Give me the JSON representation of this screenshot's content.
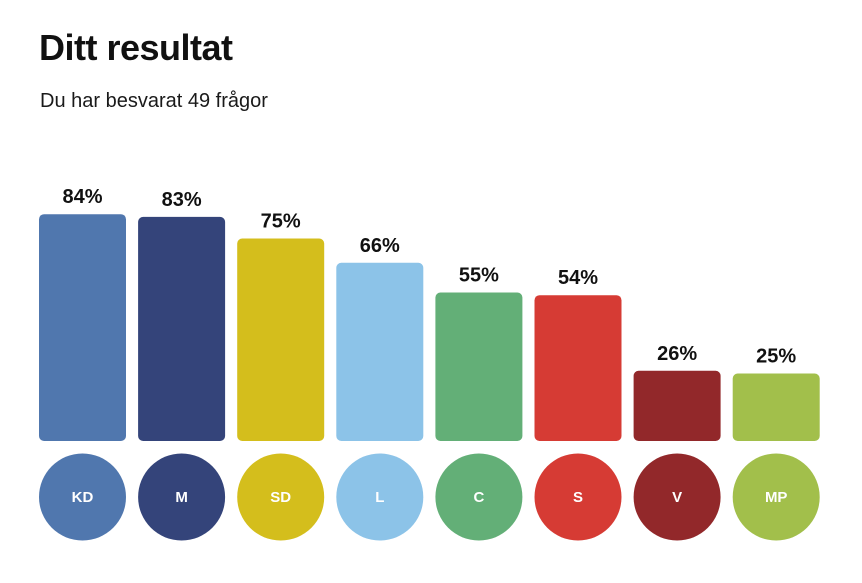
{
  "header": {
    "title": "Ditt resultat",
    "subtitle": "Du har besvarat 49 frågor"
  },
  "chart_data": {
    "type": "bar",
    "categories": [
      "KD",
      "M",
      "SD",
      "L",
      "C",
      "S",
      "V",
      "MP"
    ],
    "values": [
      84,
      83,
      75,
      66,
      55,
      54,
      26,
      25
    ],
    "value_labels": [
      "84%",
      "83%",
      "75%",
      "66%",
      "55%",
      "54%",
      "26%",
      "25%"
    ],
    "colors": [
      "#5077AE",
      "#34447A",
      "#D4BE1C",
      "#8CC3E8",
      "#63AF77",
      "#D63B34",
      "#92282A",
      "#A2BF4B"
    ],
    "unit": "%",
    "ylim": [
      0,
      100
    ],
    "grid": false,
    "legend": "none"
  }
}
